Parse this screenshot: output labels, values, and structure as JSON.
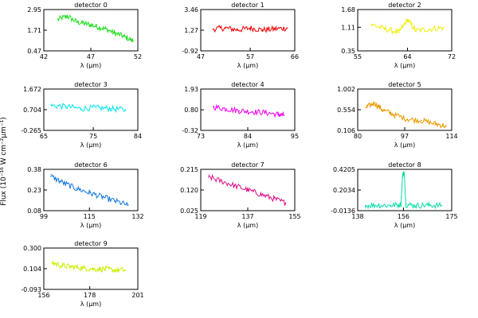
{
  "figure": {
    "ylabel": "Flux (10⁻¹⁶ W cm⁻²μm⁻¹)",
    "xlabel": "λ (μm)"
  },
  "chart_data": [
    {
      "type": "line",
      "title": "detector 0",
      "color": "#22dd22",
      "xlim": [
        42,
        52
      ],
      "ylim": [
        0.47,
        2.95
      ],
      "xticks": [
        "42",
        "47",
        "52"
      ],
      "yticks": [
        "0.47",
        "1.71",
        "2.95"
      ],
      "x": [
        43.5,
        44.5,
        45.5,
        46.5,
        47.5,
        48.5,
        49.5,
        50.5,
        51.5
      ],
      "y": [
        2.35,
        2.55,
        2.2,
        2.1,
        1.95,
        1.8,
        1.55,
        1.35,
        1.05
      ]
    },
    {
      "type": "line",
      "title": "detector 1",
      "color": "#ee0000",
      "xlim": [
        47,
        66
      ],
      "ylim": [
        -0.92,
        3.46
      ],
      "xticks": [
        "47",
        "57",
        "66"
      ],
      "yticks": [
        "-0.92",
        "1.27",
        "3.46"
      ],
      "x": [
        49.5,
        52,
        54.5,
        57,
        59.5,
        62,
        64.5
      ],
      "y": [
        1.4,
        1.5,
        1.3,
        1.5,
        1.3,
        1.4,
        1.5
      ]
    },
    {
      "type": "line",
      "title": "detector 2",
      "color": "#eeee00",
      "xlim": [
        55,
        72
      ],
      "ylim": [
        0.35,
        1.68
      ],
      "xticks": [
        "55",
        "64",
        "72"
      ],
      "yticks": [
        "0.35",
        "1.11",
        "1.68"
      ],
      "x": [
        57.5,
        60,
        62.5,
        64,
        65.5,
        68,
        70.5
      ],
      "y": [
        1.2,
        1.05,
        0.95,
        1.35,
        1.0,
        1.05,
        1.1
      ]
    },
    {
      "type": "line",
      "title": "detector 3",
      "color": "#00e5ee",
      "xlim": [
        65,
        84
      ],
      "ylim": [
        -0.265,
        1.672
      ],
      "xticks": [
        "65",
        "75",
        "84"
      ],
      "yticks": [
        "-0.265",
        "0.704",
        "1.672"
      ],
      "x": [
        66.5,
        69.5,
        72.5,
        75.5,
        78.5,
        81.5
      ],
      "y": [
        0.9,
        0.85,
        0.75,
        0.8,
        0.75,
        0.7
      ]
    },
    {
      "type": "line",
      "title": "detector 4",
      "color": "#ee00ee",
      "xlim": [
        73,
        95
      ],
      "ylim": [
        -0.32,
        1.93
      ],
      "xticks": [
        "73",
        "84",
        "95"
      ],
      "yticks": [
        "-0.32",
        "0.80",
        "1.93"
      ],
      "x": [
        76,
        79,
        82,
        85,
        88,
        91,
        92.5
      ],
      "y": [
        0.95,
        0.85,
        0.75,
        0.7,
        0.65,
        0.55,
        0.5
      ]
    },
    {
      "type": "line",
      "title": "detector 5",
      "color": "#ee9900",
      "xlim": [
        80,
        114
      ],
      "ylim": [
        0.106,
        1.002
      ],
      "xticks": [
        "80",
        "97",
        "114"
      ],
      "yticks": [
        "0.106",
        "0.554",
        "1.002"
      ],
      "x": [
        83,
        86,
        89,
        93,
        98,
        103,
        108,
        112
      ],
      "y": [
        0.6,
        0.7,
        0.55,
        0.45,
        0.35,
        0.32,
        0.25,
        0.2
      ]
    },
    {
      "type": "line",
      "title": "detector 6",
      "color": "#1177dd",
      "xlim": [
        99,
        132
      ],
      "ylim": [
        0.08,
        0.38
      ],
      "xticks": [
        "99",
        "115",
        "132"
      ],
      "yticks": [
        "0.08",
        "0.23",
        "0.38"
      ],
      "x": [
        101.5,
        106,
        110.5,
        115,
        119.5,
        124,
        128.5
      ],
      "y": [
        0.33,
        0.28,
        0.24,
        0.21,
        0.18,
        0.15,
        0.12
      ]
    },
    {
      "type": "line",
      "title": "detector 7",
      "color": "#dd1188",
      "xlim": [
        119,
        155
      ],
      "ylim": [
        0.025,
        0.215
      ],
      "xticks": [
        "119",
        "137",
        "155"
      ],
      "yticks": [
        "0.025",
        "0.120",
        "0.215"
      ],
      "x": [
        122,
        127,
        132,
        137,
        142,
        147,
        151.5
      ],
      "y": [
        0.18,
        0.16,
        0.14,
        0.12,
        0.1,
        0.08,
        0.06
      ]
    },
    {
      "type": "line",
      "title": "detector 8",
      "color": "#11ddaa",
      "xlim": [
        138,
        175
      ],
      "ylim": [
        -0.0136,
        0.4205
      ],
      "xticks": [
        "138",
        "156",
        "175"
      ],
      "yticks": [
        "-0.0136",
        "0.2034",
        "0.4205"
      ],
      "x": [
        141,
        146,
        151,
        155,
        155.7,
        156.3,
        157,
        161,
        166,
        171
      ],
      "y": [
        0.04,
        0.045,
        0.04,
        0.05,
        0.37,
        0.38,
        0.05,
        0.04,
        0.045,
        0.04
      ]
    },
    {
      "type": "line",
      "title": "detector 9",
      "color": "#ccee00",
      "xlim": [
        156,
        201
      ],
      "ylim": [
        -0.093,
        0.3
      ],
      "xticks": [
        "156",
        "178",
        "201"
      ],
      "yticks": [
        "-0.093",
        "0.104",
        "0.300"
      ],
      "x": [
        160,
        165,
        170,
        175,
        180,
        185,
        190,
        195
      ],
      "y": [
        0.16,
        0.13,
        0.12,
        0.11,
        0.1,
        0.1,
        0.09,
        0.09
      ]
    }
  ]
}
